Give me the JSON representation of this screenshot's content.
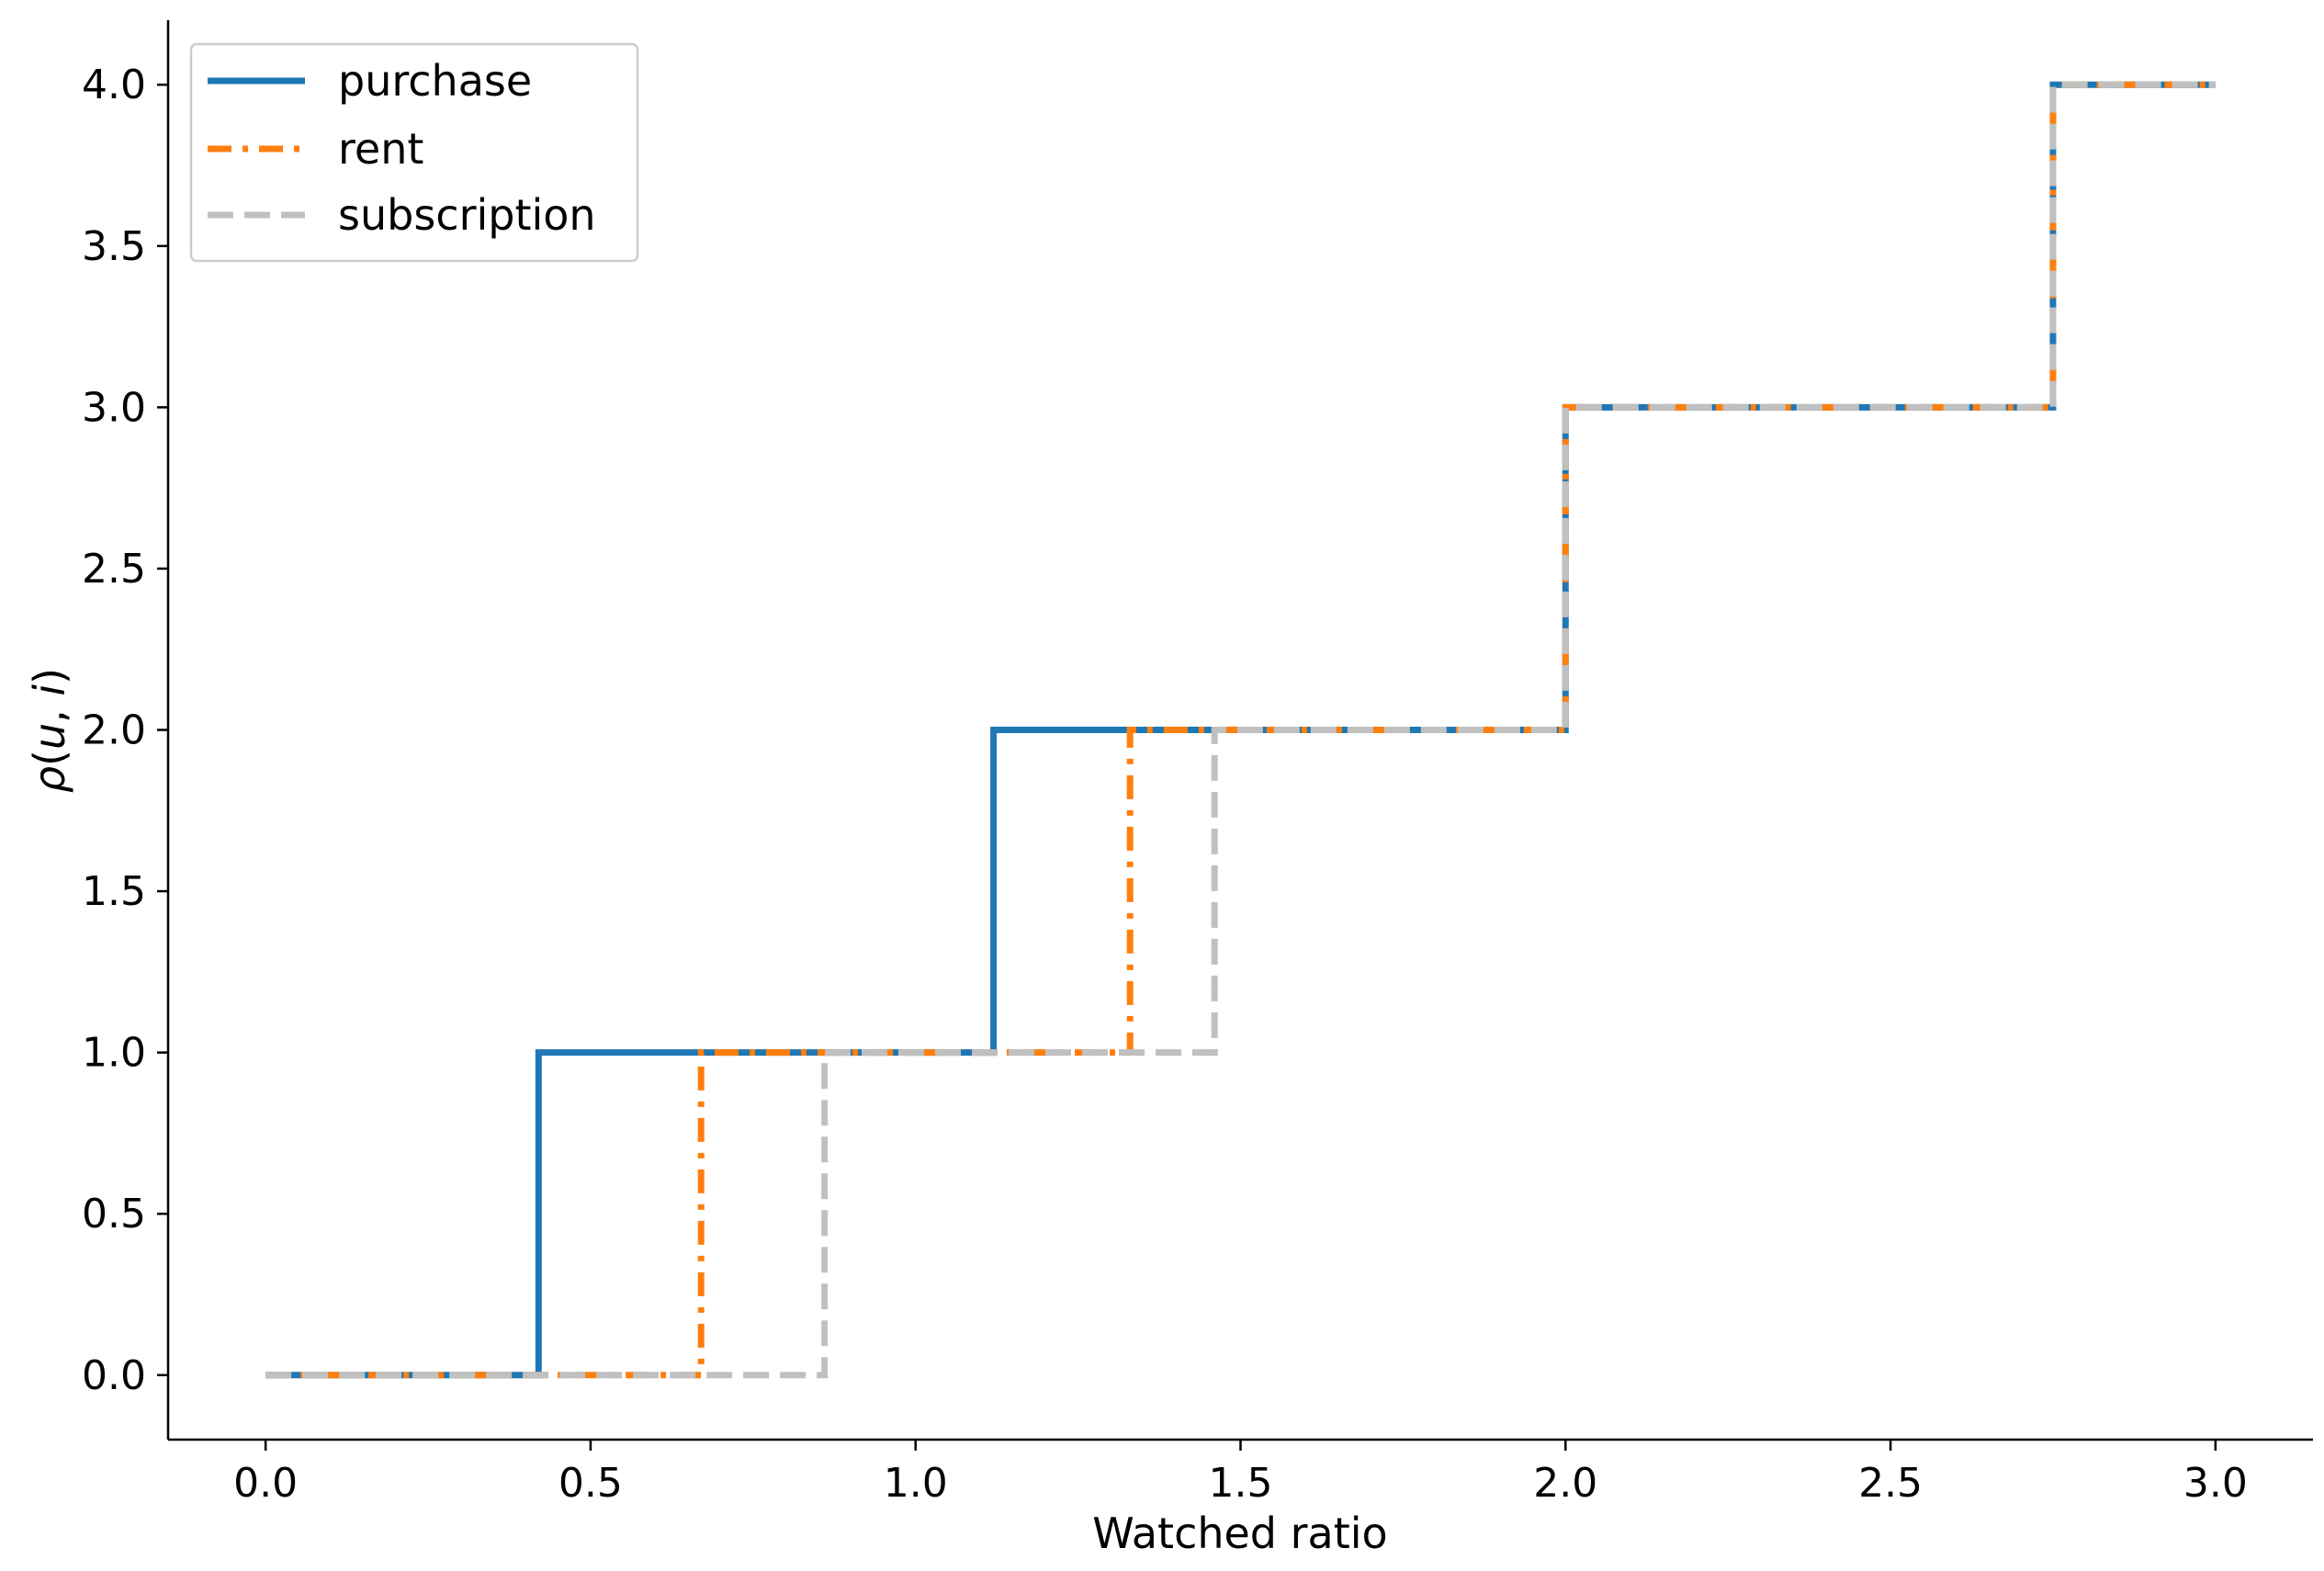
{
  "chart_data": {
    "type": "line",
    "title": "",
    "xlabel": "Watched ratio",
    "ylabel_parts": [
      "ρ",
      "(",
      "u",
      ", ",
      "i",
      ")"
    ],
    "xlim": [
      -0.15,
      3.15
    ],
    "ylim": [
      -0.2,
      4.2
    ],
    "xticks": [
      0.0,
      0.5,
      1.0,
      1.5,
      2.0,
      2.5,
      3.0
    ],
    "xtick_labels": [
      "0.0",
      "0.5",
      "1.0",
      "1.5",
      "2.0",
      "2.5",
      "3.0"
    ],
    "yticks": [
      0.0,
      0.5,
      1.0,
      1.5,
      2.0,
      2.5,
      3.0,
      3.5,
      4.0
    ],
    "ytick_labels": [
      "0.0",
      "0.5",
      "1.0",
      "1.5",
      "2.0",
      "2.5",
      "3.0",
      "3.5",
      "4.0"
    ],
    "grid": false,
    "legend_position": "top-left",
    "series": [
      {
        "name": "purchase",
        "color": "#1f77b4",
        "style": "solid",
        "steps": [
          [
            0.0,
            0
          ],
          [
            0.42,
            1
          ],
          [
            1.12,
            2
          ],
          [
            2.0,
            3
          ],
          [
            2.75,
            4
          ]
        ],
        "x_end": 3.0
      },
      {
        "name": "rent",
        "color": "#ff7f0e",
        "style": "dashdot",
        "steps": [
          [
            0.0,
            0
          ],
          [
            0.67,
            1
          ],
          [
            1.33,
            2
          ],
          [
            2.0,
            3
          ],
          [
            2.75,
            4
          ]
        ],
        "x_end": 3.0
      },
      {
        "name": "subscription",
        "color": "#c0c0c0",
        "style": "dashed",
        "steps": [
          [
            0.0,
            0
          ],
          [
            0.86,
            1
          ],
          [
            1.46,
            2
          ],
          [
            2.0,
            3
          ],
          [
            2.75,
            4
          ]
        ],
        "x_end": 3.0
      }
    ]
  }
}
